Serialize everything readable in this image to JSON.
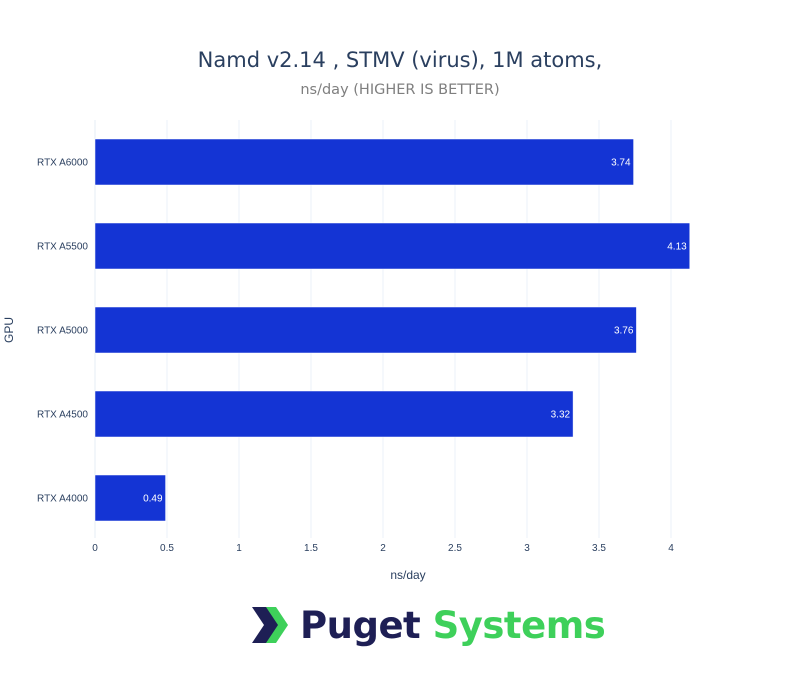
{
  "chart_data": {
    "type": "bar",
    "orientation": "horizontal",
    "title": "Namd v2.14 , STMV (virus), 1M atoms,",
    "subtitle": "ns/day (HIGHER IS BETTER)",
    "xlabel": "ns/day",
    "ylabel": "GPU",
    "categories": [
      "RTX A6000",
      "RTX A5500",
      "RTX A5000",
      "RTX A4500",
      "RTX A4000"
    ],
    "values": [
      3.74,
      4.13,
      3.76,
      3.32,
      0.49
    ],
    "data_labels": [
      "3.74",
      "4.13",
      "3.76",
      "3.32",
      "0.49"
    ],
    "xlim": [
      0,
      4.35
    ],
    "xticks": [
      0,
      0.5,
      1,
      1.5,
      2,
      2.5,
      3,
      3.5,
      4
    ],
    "xtick_labels": [
      "0",
      "0.5",
      "1",
      "1.5",
      "2",
      "2.5",
      "3",
      "3.5",
      "4"
    ],
    "bar_color": "#1434d4",
    "grid": true,
    "legend": "none"
  },
  "logo": {
    "word1": "Puget",
    "word2": "Systems",
    "color_dark": "#1e1f55",
    "color_green": "#3ed05a"
  }
}
